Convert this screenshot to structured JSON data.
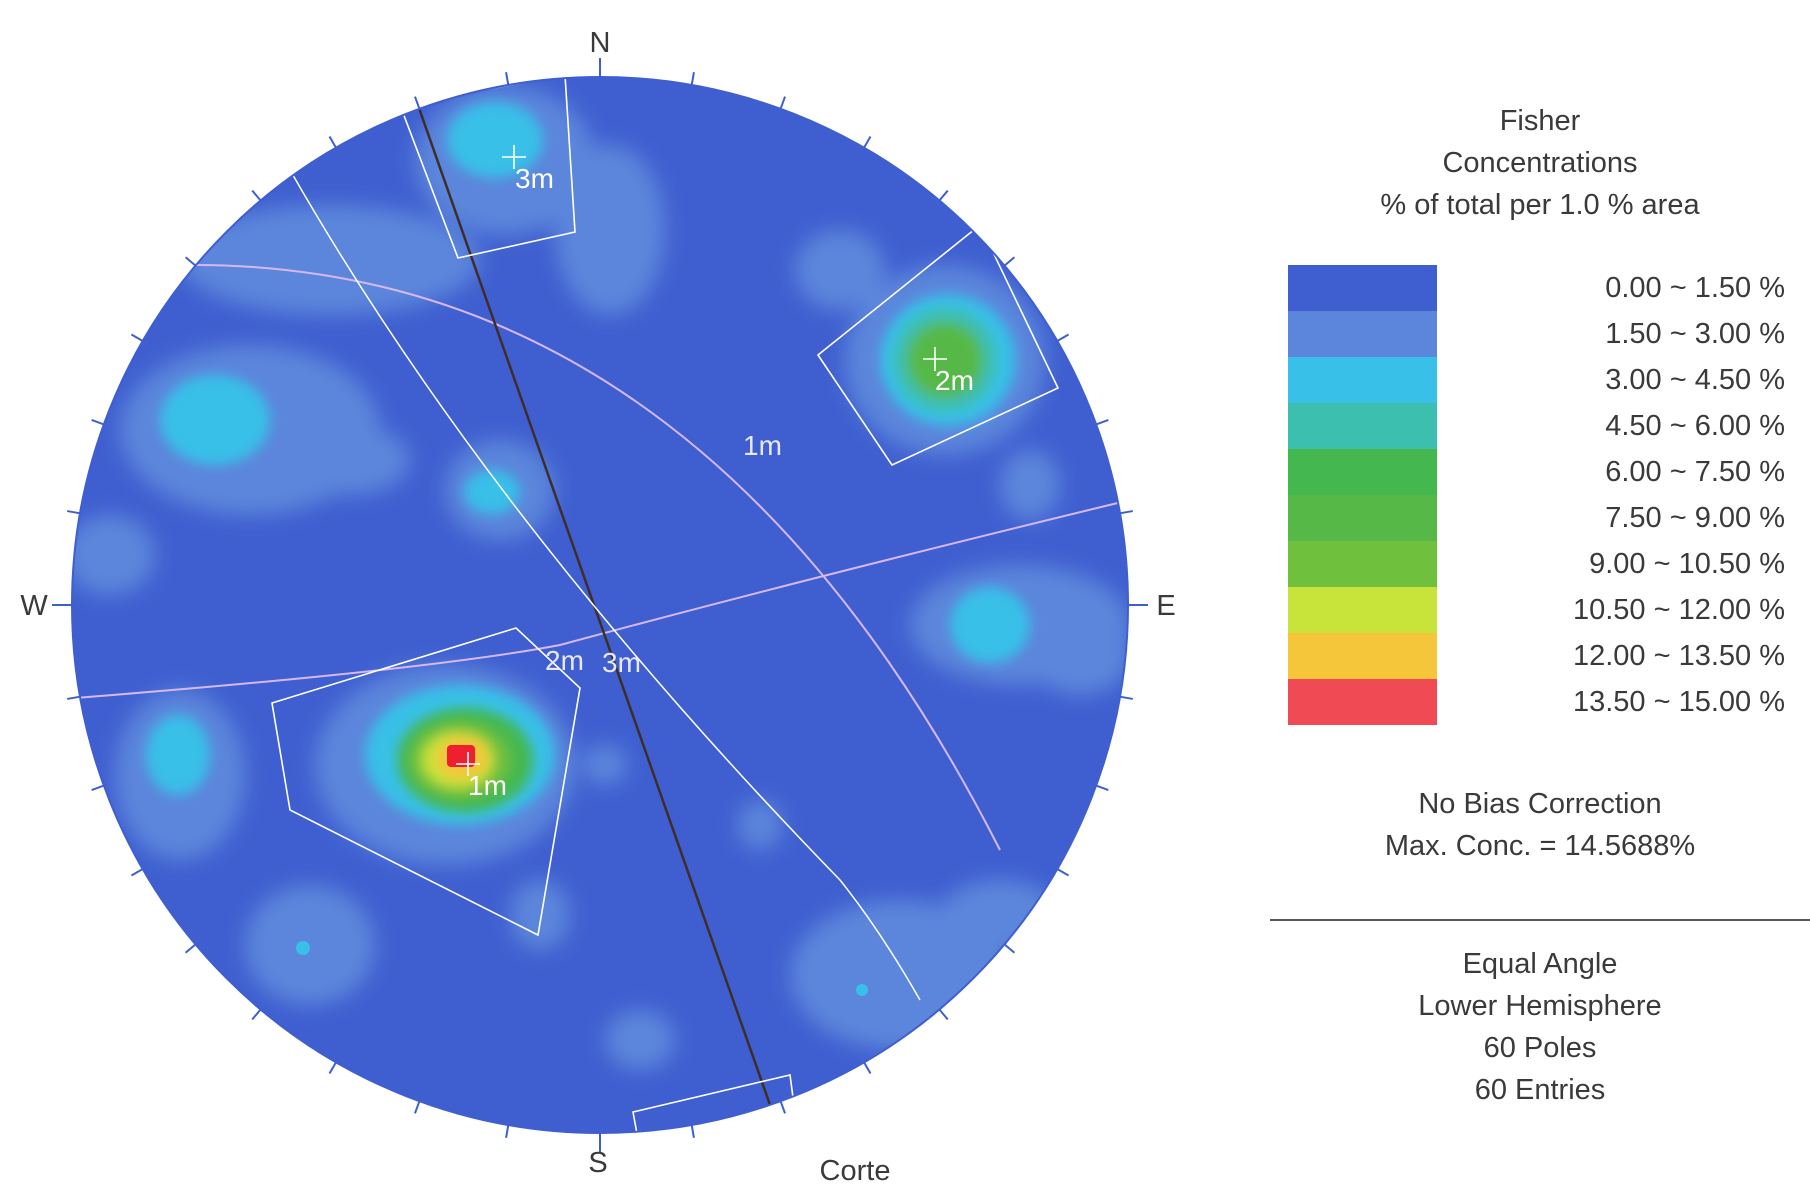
{
  "legend": {
    "title_lines": [
      "Fisher",
      "Concentrations",
      "% of total per 1.0 % area"
    ],
    "bins": [
      {
        "label": "0.00 ~  1.50 %",
        "color": "#3f5fd0"
      },
      {
        "label": "1.50 ~  3.00 %",
        "color": "#5b86db"
      },
      {
        "label": "3.00 ~  4.50 %",
        "color": "#39c0e8"
      },
      {
        "label": "4.50 ~  6.00 %",
        "color": "#3dbfb0"
      },
      {
        "label": "6.00 ~  7.50 %",
        "color": "#44b84f"
      },
      {
        "label": "7.50 ~  9.00 %",
        "color": "#56b947"
      },
      {
        "label": "9.00 ~ 10.50 %",
        "color": "#6fc03c"
      },
      {
        "label": "10.50 ~ 12.00 %",
        "color": "#c8e33a"
      },
      {
        "label": "12.00 ~ 13.50 %",
        "color": "#f5c53a"
      },
      {
        "label": "13.50 ~ 15.00 %",
        "color": "#f04a55"
      }
    ]
  },
  "stats": {
    "bias": "No Bias Correction",
    "max_conc": "Max. Conc. = 14.5688%"
  },
  "projection": {
    "lines": [
      "Equal Angle",
      "Lower Hemisphere",
      "60 Poles",
      "60 Entries"
    ]
  },
  "compass": {
    "north": "N",
    "south": "S",
    "east": "E",
    "west": "W"
  },
  "annotations": {
    "cut_line": "Corte"
  },
  "sets": [
    {
      "label": "1m"
    },
    {
      "label": "2m"
    },
    {
      "label": "3m"
    }
  ],
  "plane_labels": {
    "p1": "1m",
    "p2": "2m",
    "p3": "3m"
  }
}
